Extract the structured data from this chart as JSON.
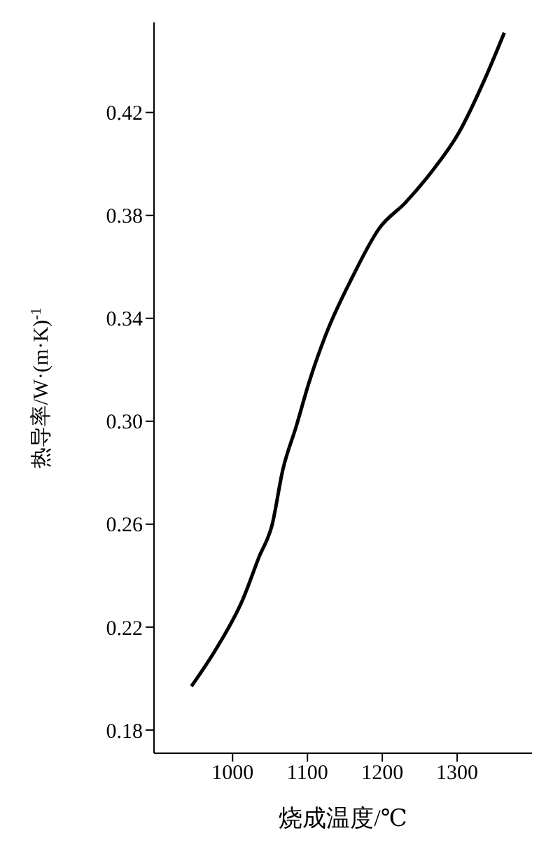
{
  "chart_data": {
    "type": "line",
    "xlabel": "烧成温度/℃",
    "ylabel": "热导率/W·(m·K)$^{-1}$",
    "series": [
      {
        "color": "#000000",
        "x": [
          945,
          979,
          1014,
          1035,
          1053,
          1067,
          1085,
          1102,
          1125,
          1160,
          1196,
          1231,
          1266,
          1302,
          1337,
          1363
        ],
        "values": [
          0.197,
          0.212,
          0.231,
          0.247,
          0.26,
          0.281,
          0.298,
          0.315,
          0.334,
          0.356,
          0.375,
          0.385,
          0.397,
          0.412,
          0.433,
          0.451
        ]
      }
    ],
    "xlim": [
      895,
      1400
    ],
    "xticks": [
      1000,
      1100,
      1200,
      1300
    ],
    "ylim": [
      0.171,
      0.455
    ],
    "yticks": [
      0.18,
      0.22,
      0.26,
      {
        "value": 0.3,
        "label": "0.30"
      },
      0.34,
      0.38,
      0.42
    ],
    "grid": false,
    "marker": "none",
    "line_style": "solid"
  }
}
